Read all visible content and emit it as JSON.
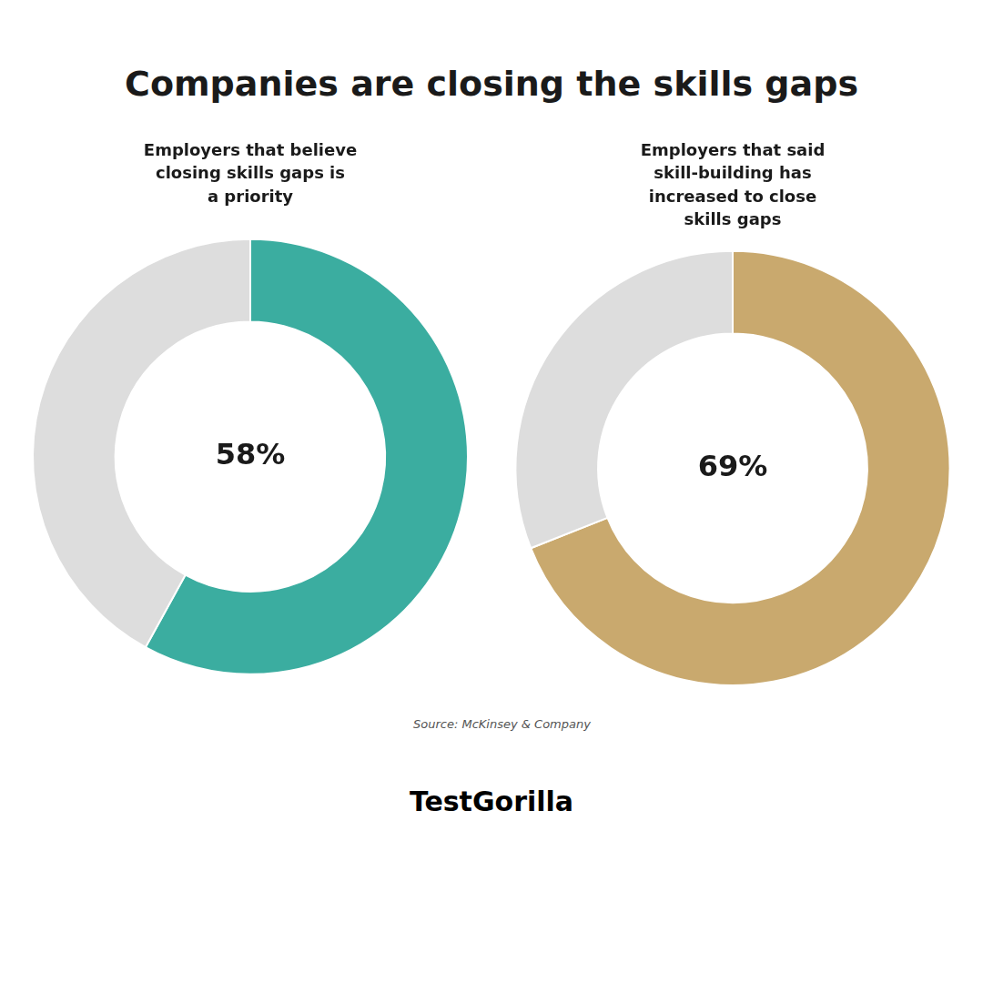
{
  "title": "Companies are closing the skills gaps",
  "annotations": [
    "Source: McKinsey & Company",
    "TestGorilla"
  ],
  "chart_data": [
    {
      "type": "doughnut",
      "title": "Employers that believe\nclosing skills gaps is\na priority",
      "values": [
        58,
        42
      ],
      "colors": [
        "#3BADA0",
        "#DDDDDD"
      ],
      "annotations": [
        "58%"
      ]
    },
    {
      "type": "doughnut",
      "title": "Employers that said\nskill-building has\nincreased to close\nskills gaps",
      "values": [
        69,
        31
      ],
      "colors": [
        "#C9A96E",
        "#DDDDDD"
      ],
      "annotations": [
        "69%"
      ]
    }
  ]
}
